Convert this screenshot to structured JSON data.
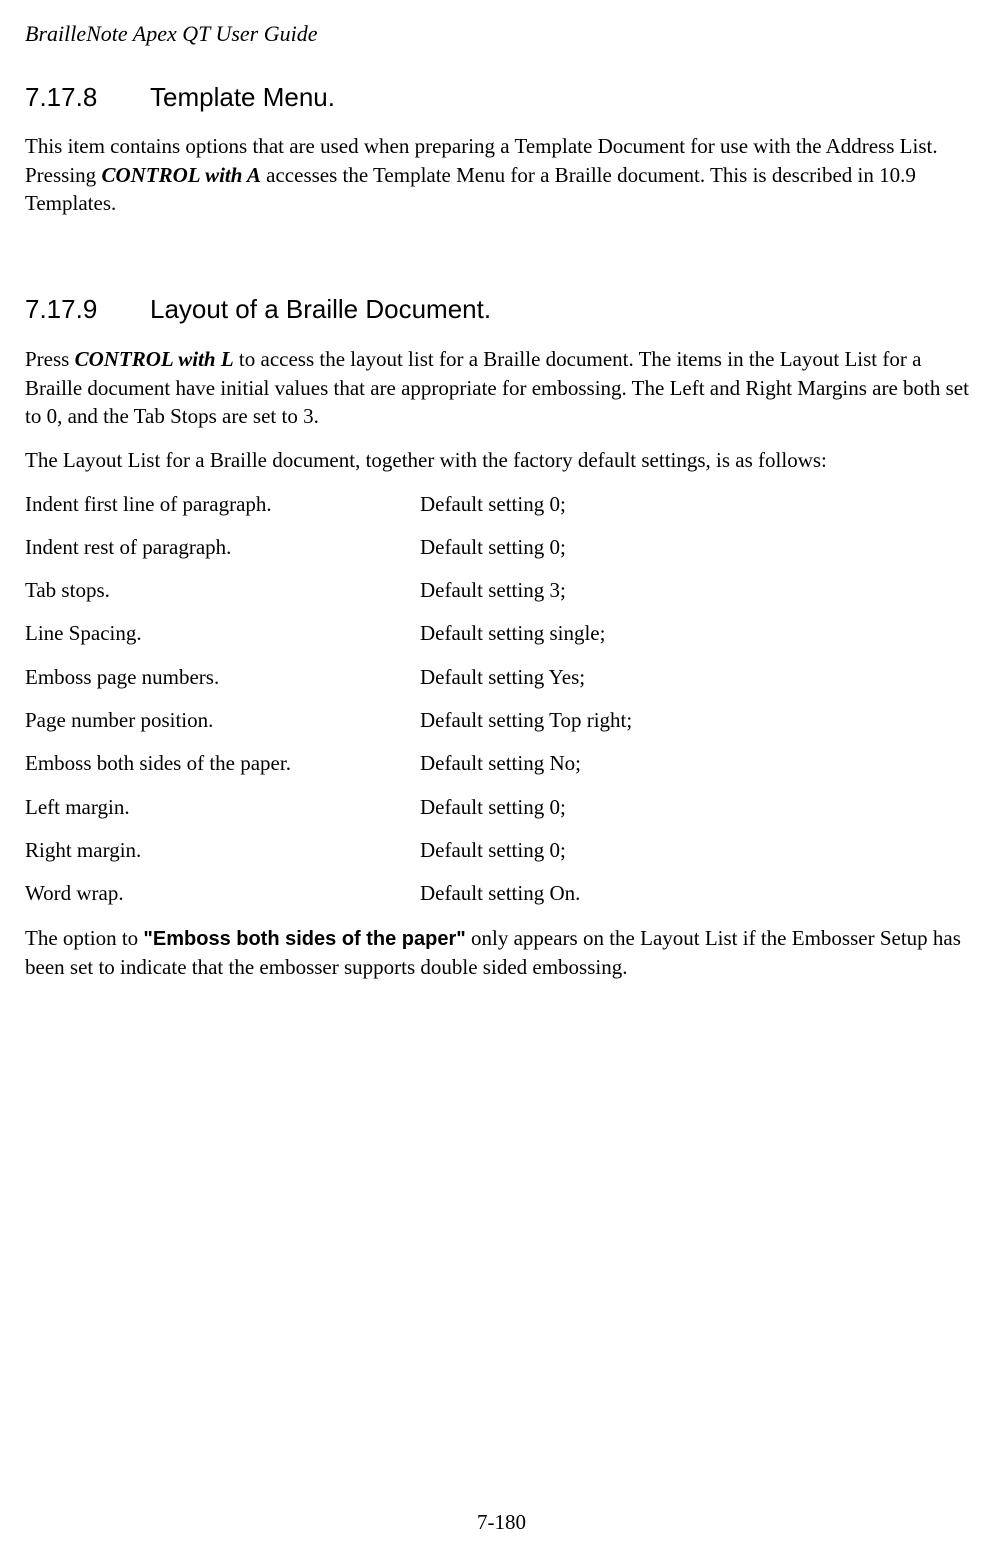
{
  "header": {
    "title": "BrailleNote Apex QT User Guide"
  },
  "section1": {
    "number": "7.17.8",
    "title": "Template Menu.",
    "paragraph_parts": {
      "p1": "This item contains options that are used when preparing a Template Document for use with the Address List. Pressing ",
      "kbd": "CONTROL with A",
      "p2": " accesses the Template Menu for a Braille document. This is described in 10.9 Templates."
    }
  },
  "section2": {
    "number": "7.17.9",
    "title": "Layout of a Braille Document.",
    "intro_parts": {
      "p1": "Press ",
      "kbd": "CONTROL with L",
      "p2": " to access the layout list for a Braille document. The items in the Layout List for a Braille document have initial values that are appropriate for embossing. The Left and Right Margins are both set to 0, and the Tab Stops are set to 3."
    },
    "list_intro": "The Layout List for a Braille document, together with the factory default settings, is as follows:",
    "rows": [
      {
        "label": "Indent first line of paragraph.",
        "value": "Default setting 0;"
      },
      {
        "label": "Indent rest of paragraph.",
        "value": "Default setting 0;"
      },
      {
        "label": "Tab stops.",
        "value": "Default setting 3;"
      },
      {
        "label": "Line Spacing.",
        "value": "Default setting single;"
      },
      {
        "label": "Emboss page numbers.",
        "value": "Default setting Yes;"
      },
      {
        "label": "Page number position.",
        "value": "Default setting Top right;"
      },
      {
        "label": "Emboss both sides of the paper.",
        "value": "Default setting No;"
      },
      {
        "label": "Left margin.",
        "value": "Default setting 0;"
      },
      {
        "label": "Right margin.",
        "value": "Default setting 0;"
      },
      {
        "label": "Word wrap.",
        "value": "Default setting On."
      }
    ],
    "footnote_parts": {
      "p1": "The option to ",
      "bold": "\"Emboss both sides of the paper\"",
      "p2": " only appears on the Layout List if the Embosser Setup has been set to indicate that the embosser supports double sided embossing."
    }
  },
  "footer": {
    "page_number": "7-180"
  }
}
